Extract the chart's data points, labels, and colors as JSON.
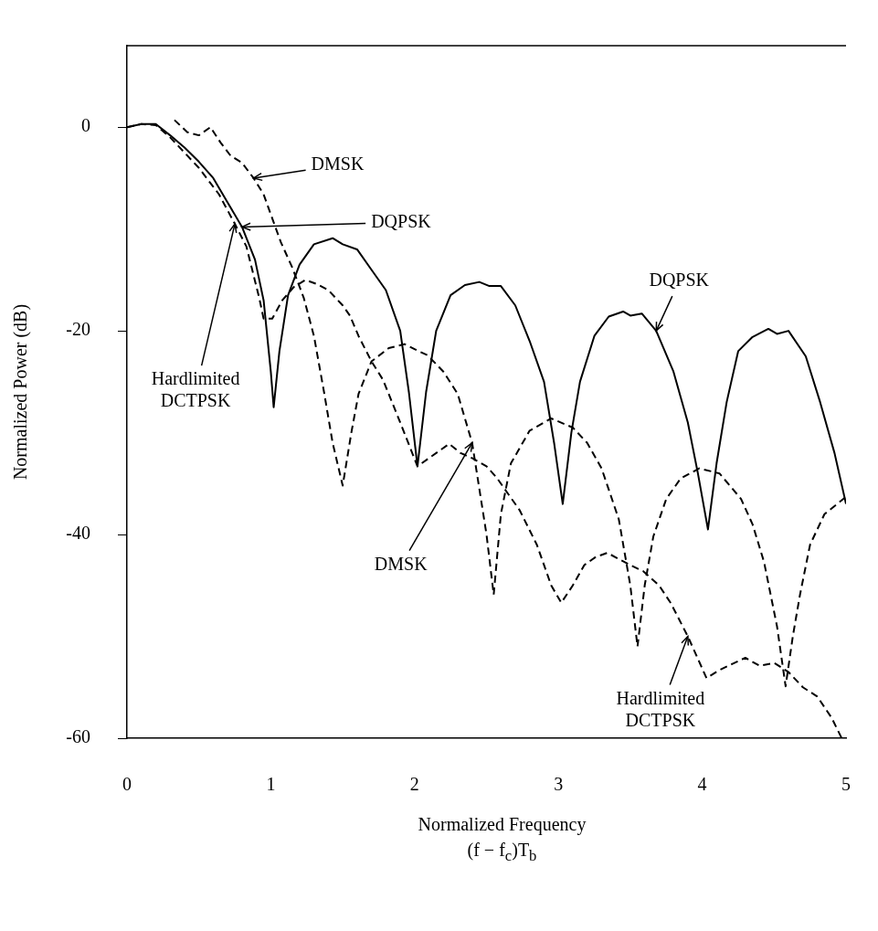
{
  "chart_data": {
    "type": "line",
    "xlabel": "Normalized Frequency\n(f − f$_{c}$)T$_{b}$",
    "ylabel": "Normalized Power (dB)",
    "xlim": [
      0,
      5
    ],
    "xticks": [
      0,
      1,
      2,
      3,
      4,
      5
    ],
    "ylim": [
      -60,
      8
    ],
    "yticks": [
      0,
      -20,
      -40,
      -60
    ],
    "marker": "none",
    "legend": false,
    "series": [
      {
        "color": "#000000",
        "line_style": "solid",
        "x": [
          0,
          0.1,
          0.2,
          0.3,
          0.4,
          0.5,
          0.6,
          0.7,
          0.8,
          0.89,
          0.95,
          1.0,
          1.02,
          1.06,
          1.12,
          1.2,
          1.3,
          1.43,
          1.5,
          1.6,
          1.7,
          1.8,
          1.9,
          1.96,
          2.02,
          2.08,
          2.15,
          2.25,
          2.35,
          2.45,
          2.52,
          2.6,
          2.7,
          2.8,
          2.9,
          2.97,
          3.03,
          3.09,
          3.15,
          3.25,
          3.35,
          3.45,
          3.5,
          3.58,
          3.68,
          3.8,
          3.9,
          3.97,
          4.04,
          4.1,
          4.17,
          4.25,
          4.35,
          4.46,
          4.52,
          4.6,
          4.72,
          4.82,
          4.92,
          5.0
        ],
        "values": [
          0,
          0.3,
          0.3,
          -0.8,
          -2,
          -3.4,
          -5,
          -7.4,
          -9.8,
          -13,
          -17,
          -24,
          -27.5,
          -22,
          -16.5,
          -13.5,
          -11.5,
          -10.9,
          -11.5,
          -12,
          -14,
          -16,
          -20,
          -26,
          -33.3,
          -26,
          -20,
          -16.5,
          -15.5,
          -15.2,
          -15.6,
          -15.6,
          -17.5,
          -21,
          -25,
          -31,
          -37,
          -30,
          -25,
          -20.5,
          -18.6,
          -18.1,
          -18.5,
          -18.3,
          -20,
          -24,
          -29,
          -34,
          -39.5,
          -33,
          -27,
          -22,
          -20.6,
          -19.8,
          -20.3,
          -20,
          -22.5,
          -27,
          -32,
          -37
        ]
      },
      {
        "color": "#000000",
        "line_style": "dashed",
        "x": [
          0.33,
          0.42,
          0.5,
          0.58,
          0.65,
          0.72,
          0.8,
          0.88,
          0.95,
          1.07,
          1.15,
          1.23,
          1.3,
          1.37,
          1.43,
          1.5,
          1.56,
          1.61,
          1.7,
          1.82,
          1.93,
          2.0,
          2.09,
          2.2,
          2.3,
          2.4,
          2.5,
          2.55,
          2.6,
          2.67,
          2.8,
          2.95,
          3.1,
          3.2,
          3.3,
          3.42,
          3.5,
          3.55,
          3.6,
          3.66,
          3.75,
          3.85,
          3.98,
          4.12,
          4.27,
          4.35,
          4.43,
          4.52,
          4.58,
          4.63,
          4.68,
          4.75,
          4.85,
          5.0
        ],
        "values": [
          0.7,
          -0.5,
          -0.8,
          0,
          -1.5,
          -2.8,
          -3.5,
          -5,
          -6.6,
          -11.3,
          -13.8,
          -16.8,
          -20.5,
          -26,
          -31,
          -35.2,
          -30,
          -26.2,
          -23,
          -21.7,
          -21.3,
          -21.8,
          -22.4,
          -24,
          -26.2,
          -31,
          -40,
          -45.9,
          -38,
          -33,
          -29.8,
          -28.6,
          -29.5,
          -31,
          -33.5,
          -38.5,
          -45,
          -51,
          -45,
          -40.2,
          -36.5,
          -34.5,
          -33.5,
          -34,
          -36.5,
          -39,
          -42.7,
          -49,
          -54.9,
          -50,
          -45.9,
          -41,
          -38,
          -36.3
        ]
      },
      {
        "color": "#000000",
        "line_style": "dashed",
        "x": [
          0,
          0.1,
          0.2,
          0.3,
          0.4,
          0.5,
          0.64,
          0.75,
          0.83,
          0.92,
          0.95,
          1.01,
          1.08,
          1.16,
          1.24,
          1.32,
          1.4,
          1.5,
          1.55,
          1.61,
          1.7,
          1.78,
          1.9,
          2.02,
          2.1,
          2.24,
          2.32,
          2.4,
          2.5,
          2.57,
          2.65,
          2.73,
          2.85,
          2.95,
          3.02,
          3.1,
          3.18,
          3.26,
          3.34,
          3.42,
          3.5,
          3.59,
          3.7,
          3.78,
          3.9,
          4.03,
          4.12,
          4.21,
          4.3,
          4.4,
          4.5,
          4.6,
          4.7,
          4.8,
          4.9,
          4.97
        ],
        "values": [
          0,
          0.3,
          0.2,
          -1,
          -2.5,
          -4,
          -6.6,
          -9.5,
          -11.7,
          -16.8,
          -18.8,
          -18.8,
          -17,
          -15.7,
          -15,
          -15.4,
          -16,
          -17.5,
          -18.5,
          -20.5,
          -23,
          -24.8,
          -29,
          -33.3,
          -32.5,
          -31.1,
          -32,
          -32.5,
          -33.3,
          -34.4,
          -36,
          -37.6,
          -41,
          -45,
          -46.7,
          -45,
          -43,
          -42.2,
          -41.8,
          -42.4,
          -43,
          -43.6,
          -45,
          -46.7,
          -50,
          -54.1,
          -53.3,
          -52.7,
          -52.1,
          -52.9,
          -52.6,
          -53.5,
          -55,
          -55.9,
          -58,
          -60
        ]
      }
    ],
    "annotations": [
      {
        "text": "DMSK",
        "x": 0.88,
        "y": -5
      },
      {
        "text": "DQPSK",
        "x": 0.8,
        "y": -9.8
      },
      {
        "text": "Hardlimited DCTPSK",
        "x": 0.75,
        "y": -9.5
      },
      {
        "text": "DQPSK",
        "x": 3.68,
        "y": -20
      },
      {
        "text": "DMSK",
        "x": 2.4,
        "y": -31
      },
      {
        "text": "Hardlimited DCTPSK",
        "x": 3.9,
        "y": -50
      }
    ]
  }
}
